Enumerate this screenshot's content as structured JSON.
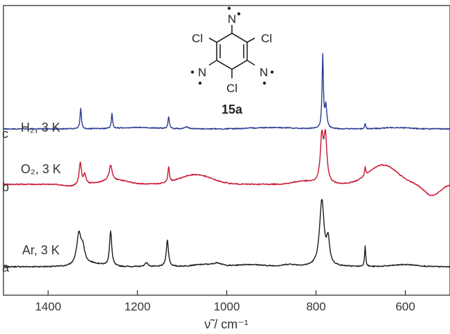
{
  "chart_data": {
    "type": "line",
    "xlabel": "ν̃ / cm⁻¹",
    "xlim": [
      1500,
      500
    ],
    "x_reversed": true,
    "x_ticks": [
      1400,
      1200,
      1000,
      800,
      600
    ],
    "y_ticks_shown": false,
    "compound_label": "15a",
    "structure_atoms": {
      "n_top": "N",
      "n_left": "N",
      "n_right": "N",
      "cl_top_left": "Cl",
      "cl_top_right": "Cl",
      "cl_bottom": "Cl"
    },
    "series": [
      {
        "letter": "a",
        "label": "Ar, 3 K",
        "color": "#1a1a1a",
        "baseline": 385,
        "peaks": [
          [
            1331,
            45,
            6
          ],
          [
            1322,
            20,
            5
          ],
          [
            1260,
            50,
            3
          ],
          [
            1180,
            6,
            4
          ],
          [
            1133,
            38,
            3
          ],
          [
            1020,
            4,
            10
          ],
          [
            787,
            95,
            6
          ],
          [
            773,
            35,
            4
          ],
          [
            690,
            30,
            1.5
          ],
          [
            860,
            3,
            20
          ]
        ],
        "broad": [
          [
            1300,
            4,
            30
          ],
          [
            1050,
            3,
            40
          ],
          [
            950,
            3,
            40
          ],
          [
            600,
            3,
            40
          ]
        ]
      },
      {
        "letter": "b",
        "label": "O₂, 3 K",
        "color": "#c8102e",
        "baseline": 266,
        "peaks": [
          [
            1328,
            32,
            3
          ],
          [
            1318,
            14,
            3
          ],
          [
            1260,
            22,
            4
          ],
          [
            1130,
            22,
            2
          ],
          [
            787,
            65,
            4
          ],
          [
            779,
            65,
            4
          ],
          [
            690,
            12,
            1.5
          ]
        ],
        "broad": [
          [
            1350,
            -3,
            20
          ],
          [
            1250,
            6,
            40
          ],
          [
            1070,
            14,
            50
          ],
          [
            830,
            4,
            30
          ],
          [
            650,
            28,
            45
          ],
          [
            540,
            -16,
            25
          ]
        ]
      },
      {
        "letter": "c",
        "label": "H₂, 3 K",
        "color": "#2b3990",
        "baseline": 186,
        "peaks": [
          [
            1327,
            30,
            1.8
          ],
          [
            1257,
            22,
            1.6
          ],
          [
            1130,
            17,
            1.8
          ],
          [
            785,
            105,
            1.8
          ],
          [
            778,
            32,
            2.5
          ],
          [
            690,
            8,
            1.5
          ],
          [
            1090,
            3,
            5
          ]
        ],
        "broad": [
          [
            1200,
            2,
            60
          ],
          [
            900,
            2,
            60
          ],
          [
            620,
            2,
            40
          ]
        ]
      }
    ]
  }
}
